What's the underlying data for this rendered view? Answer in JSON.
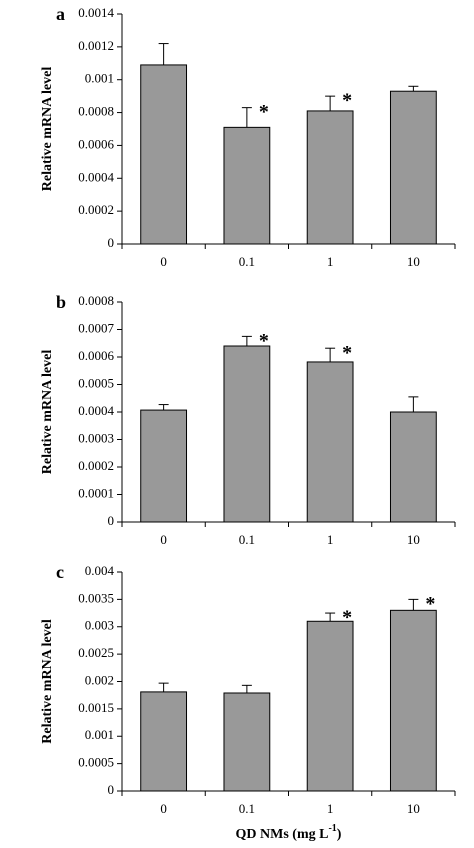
{
  "chart_data": [
    {
      "type": "bar",
      "panel": "a",
      "ylabel": "Relative mRNA level",
      "categories": [
        "0",
        "0.1",
        "1",
        "10"
      ],
      "values": [
        0.00109,
        0.00071,
        0.00081,
        0.00093
      ],
      "errors": [
        0.00013,
        0.00012,
        9e-05,
        3e-05
      ],
      "annotations": [
        {
          "index": 1,
          "text": "*"
        },
        {
          "index": 2,
          "text": "*"
        }
      ],
      "color": "#999999",
      "ylim": [
        0,
        0.0014
      ],
      "yticks": [
        0,
        0.0002,
        0.0004,
        0.0006,
        0.0008,
        0.001,
        0.0012,
        0.0014
      ]
    },
    {
      "type": "bar",
      "panel": "b",
      "ylabel": "Relative mRNA level",
      "categories": [
        "0",
        "0.1",
        "1",
        "10"
      ],
      "values": [
        0.000407,
        0.00064,
        0.000582,
        0.0004
      ],
      "errors": [
        2e-05,
        3.5e-05,
        5e-05,
        5.5e-05
      ],
      "annotations": [
        {
          "index": 1,
          "text": "*"
        },
        {
          "index": 2,
          "text": "*"
        }
      ],
      "color": "#999999",
      "ylim": [
        0,
        0.0008
      ],
      "yticks": [
        0,
        0.0001,
        0.0002,
        0.0003,
        0.0004,
        0.0005,
        0.0006,
        0.0007,
        0.0008
      ]
    },
    {
      "type": "bar",
      "panel": "c",
      "ylabel": "Relative mRNA level",
      "xlabel": {
        "text": "QD NMs (mg L",
        "superscript": "-1",
        "end": ")"
      },
      "categories": [
        "0",
        "0.1",
        "1",
        "10"
      ],
      "values": [
        0.00181,
        0.00179,
        0.0031,
        0.0033
      ],
      "errors": [
        0.00016,
        0.00014,
        0.00015,
        0.0002
      ],
      "annotations": [
        {
          "index": 2,
          "text": "*"
        },
        {
          "index": 3,
          "text": "*"
        }
      ],
      "color": "#999999",
      "ylim": [
        0,
        0.004
      ],
      "yticks": [
        0,
        0.0005,
        0.001,
        0.0015,
        0.002,
        0.0025,
        0.003,
        0.0035,
        0.004
      ]
    }
  ]
}
